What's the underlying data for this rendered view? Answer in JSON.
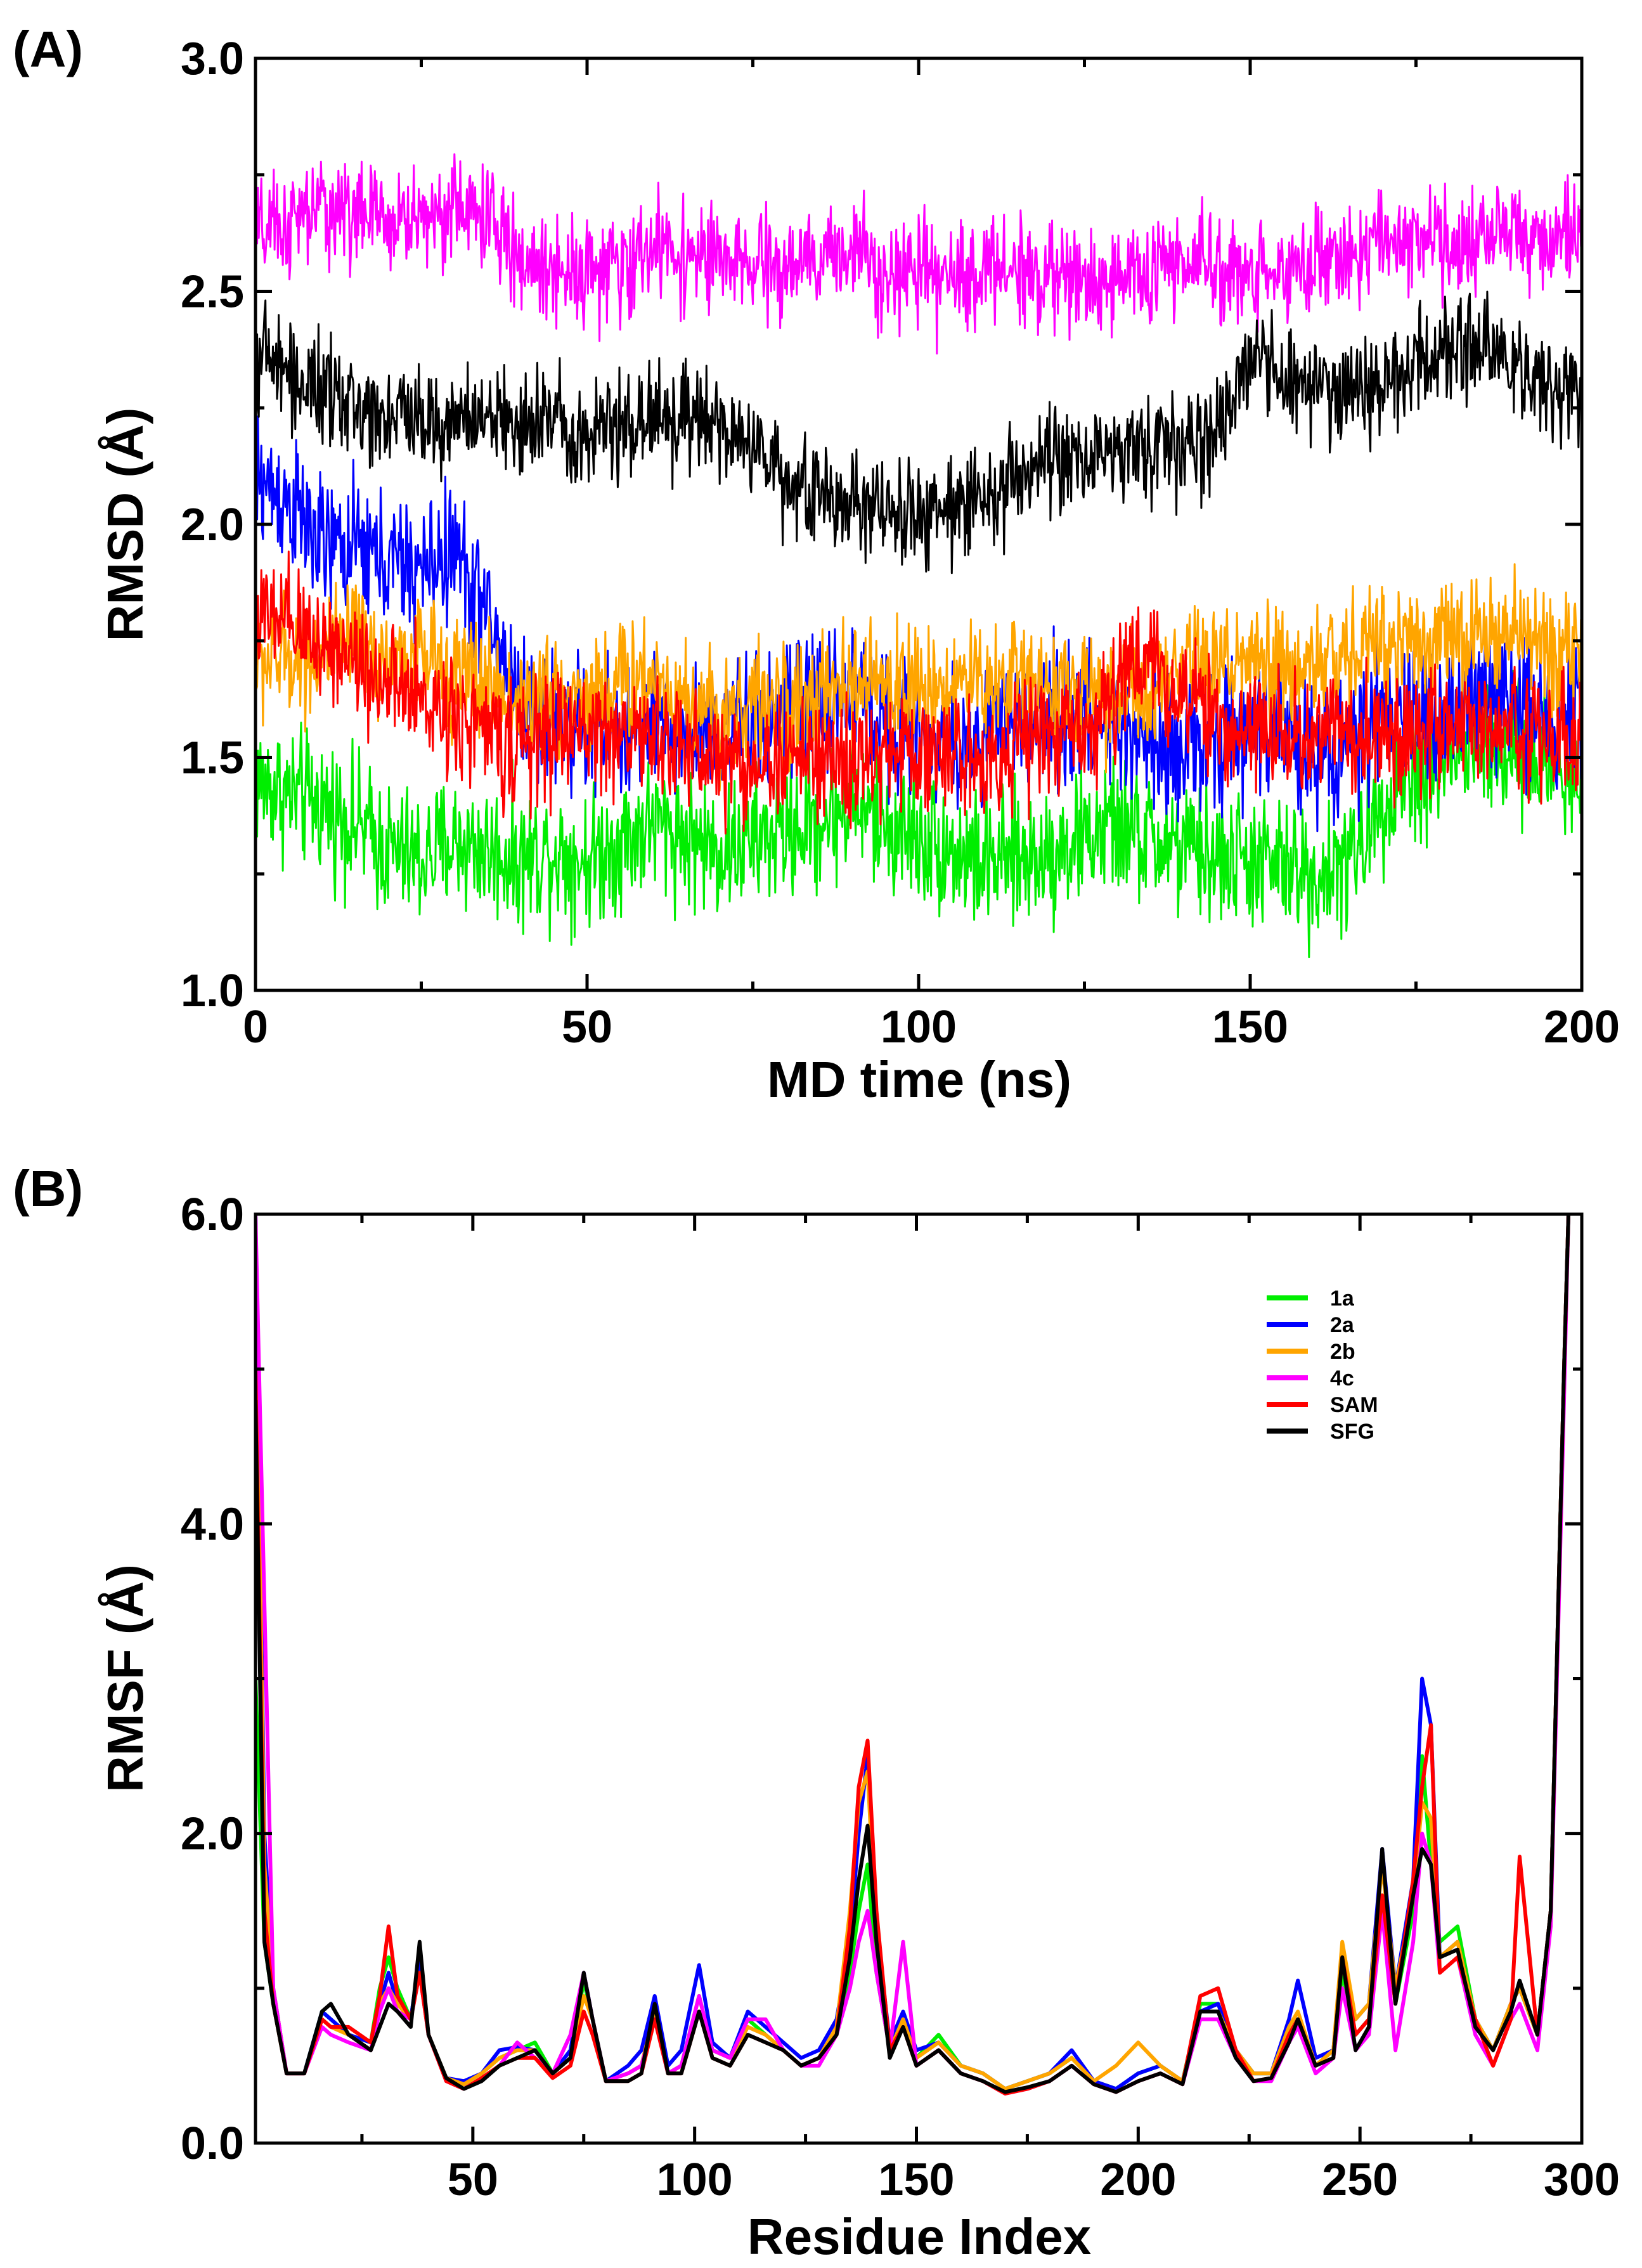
{
  "chart_data": [
    {
      "panel": "(A)",
      "type": "line",
      "title": "",
      "xlabel": "MD time (ns)",
      "ylabel": "RMSD (Å)",
      "xlim": [
        0,
        200
      ],
      "ylim": [
        1.0,
        3.0
      ],
      "xticks": [
        0,
        50,
        100,
        150,
        200
      ],
      "yticks": [
        1.0,
        1.5,
        2.0,
        2.5,
        3.0
      ],
      "xtick_labels": [
        "0",
        "50",
        "100",
        "150",
        "200"
      ],
      "ytick_labels": [
        "1.0",
        "1.5",
        "2.0",
        "2.5",
        "3.0"
      ],
      "grid": false,
      "x": [
        0,
        5,
        10,
        15,
        20,
        25,
        30,
        35,
        40,
        45,
        50,
        55,
        60,
        65,
        70,
        75,
        80,
        85,
        90,
        95,
        100,
        105,
        110,
        115,
        120,
        125,
        130,
        135,
        140,
        145,
        150,
        155,
        160,
        165,
        170,
        175,
        180,
        185,
        190,
        195,
        200
      ],
      "series": [
        {
          "name": "1a",
          "color": "#00ee00",
          "noise": 0.09,
          "values": [
            1.45,
            1.42,
            1.4,
            1.36,
            1.3,
            1.28,
            1.32,
            1.3,
            1.28,
            1.3,
            1.28,
            1.32,
            1.36,
            1.33,
            1.3,
            1.32,
            1.34,
            1.36,
            1.4,
            1.35,
            1.33,
            1.3,
            1.27,
            1.28,
            1.3,
            1.33,
            1.35,
            1.32,
            1.3,
            1.28,
            1.28,
            1.26,
            1.25,
            1.27,
            1.42,
            1.46,
            1.5,
            1.52,
            1.5,
            1.49,
            1.45
          ]
        },
        {
          "name": "2a",
          "color": "#0000ff",
          "noise": 0.09,
          "values": [
            2.1,
            2.05,
            1.95,
            1.95,
            1.92,
            1.9,
            1.95,
            1.8,
            1.62,
            1.58,
            1.56,
            1.55,
            1.55,
            1.56,
            1.56,
            1.57,
            1.59,
            1.62,
            1.65,
            1.58,
            1.55,
            1.52,
            1.55,
            1.58,
            1.6,
            1.58,
            1.56,
            1.55,
            1.52,
            1.53,
            1.55,
            1.56,
            1.52,
            1.52,
            1.58,
            1.6,
            1.6,
            1.62,
            1.62,
            1.6,
            1.6
          ]
        },
        {
          "name": "2b",
          "color": "#ffa500",
          "noise": 0.08,
          "values": [
            1.7,
            1.72,
            1.72,
            1.74,
            1.7,
            1.72,
            1.68,
            1.66,
            1.62,
            1.63,
            1.64,
            1.66,
            1.68,
            1.62,
            1.6,
            1.62,
            1.6,
            1.62,
            1.65,
            1.66,
            1.65,
            1.66,
            1.66,
            1.68,
            1.66,
            1.64,
            1.65,
            1.62,
            1.68,
            1.7,
            1.7,
            1.68,
            1.7,
            1.72,
            1.75,
            1.76,
            1.75,
            1.76,
            1.76,
            1.74,
            1.74
          ]
        },
        {
          "name": "4c",
          "color": "#ff00ff",
          "noise": 0.07,
          "values": [
            2.62,
            2.64,
            2.68,
            2.67,
            2.65,
            2.66,
            2.68,
            2.66,
            2.56,
            2.55,
            2.55,
            2.54,
            2.6,
            2.58,
            2.56,
            2.55,
            2.55,
            2.56,
            2.6,
            2.55,
            2.53,
            2.52,
            2.55,
            2.55,
            2.53,
            2.52,
            2.53,
            2.54,
            2.56,
            2.55,
            2.54,
            2.55,
            2.56,
            2.58,
            2.6,
            2.62,
            2.6,
            2.62,
            2.62,
            2.6,
            2.61
          ]
        },
        {
          "name": "SAM",
          "color": "#ff0000",
          "noise": 0.08,
          "values": [
            1.8,
            1.78,
            1.75,
            1.72,
            1.65,
            1.62,
            1.6,
            1.55,
            1.52,
            1.55,
            1.56,
            1.55,
            1.54,
            1.52,
            1.5,
            1.48,
            1.5,
            1.5,
            1.48,
            1.5,
            1.52,
            1.5,
            1.5,
            1.53,
            1.55,
            1.56,
            1.65,
            1.72,
            1.62,
            1.57,
            1.55,
            1.56,
            1.55,
            1.55,
            1.55,
            1.55,
            1.55,
            1.56,
            1.55,
            1.55,
            1.54
          ]
        },
        {
          "name": "SFG",
          "color": "#000000",
          "noise": 0.07,
          "values": [
            2.38,
            2.32,
            2.28,
            2.25,
            2.24,
            2.23,
            2.22,
            2.22,
            2.22,
            2.23,
            2.2,
            2.21,
            2.24,
            2.22,
            2.2,
            2.17,
            2.1,
            2.05,
            2.05,
            2.02,
            2.02,
            2.04,
            2.06,
            2.1,
            2.12,
            2.15,
            2.16,
            2.17,
            2.16,
            2.2,
            2.36,
            2.32,
            2.3,
            2.28,
            2.3,
            2.35,
            2.38,
            2.4,
            2.32,
            2.3,
            2.28
          ]
        }
      ]
    },
    {
      "panel": "(B)",
      "type": "line",
      "title": "",
      "xlabel": "Residue Index",
      "ylabel": "RMSF (Å)",
      "xlim": [
        1,
        300
      ],
      "ylim": [
        0.0,
        6.0
      ],
      "xticks": [
        50,
        100,
        150,
        200,
        250,
        300
      ],
      "yticks": [
        0.0,
        2.0,
        4.0,
        6.0
      ],
      "xtick_labels": [
        "50",
        "100",
        "150",
        "200",
        "250",
        "300"
      ],
      "ytick_labels": [
        "0.0",
        "2.0",
        "4.0",
        "6.0"
      ],
      "grid": false,
      "legend_position": "top-right",
      "x": [
        1,
        3,
        5,
        8,
        12,
        16,
        18,
        22,
        27,
        29,
        31,
        33,
        36,
        38,
        40,
        44,
        48,
        52,
        56,
        60,
        64,
        68,
        72,
        75,
        77,
        80,
        85,
        88,
        91,
        94,
        97,
        101,
        104,
        108,
        112,
        116,
        120,
        124,
        128,
        132,
        135,
        137,
        139,
        141,
        144,
        147,
        150,
        155,
        160,
        165,
        170,
        175,
        180,
        185,
        190,
        195,
        200,
        205,
        210,
        214,
        218,
        222,
        226,
        230,
        234,
        236,
        240,
        244,
        246,
        249,
        252,
        255,
        258,
        262,
        264,
        266,
        268,
        272,
        276,
        280,
        284,
        286,
        290,
        293,
        296,
        297
      ],
      "series": [
        {
          "name": "1a",
          "color": "#00ee00",
          "values": [
            3.0,
            1.3,
            0.9,
            0.45,
            0.45,
            0.85,
            0.8,
            0.7,
            0.65,
            1.0,
            1.2,
            1.0,
            0.8,
            1.2,
            0.7,
            0.42,
            0.38,
            0.45,
            0.55,
            0.6,
            0.65,
            0.45,
            0.55,
            1.05,
            0.8,
            0.4,
            0.45,
            0.5,
            0.85,
            0.45,
            0.5,
            0.95,
            0.6,
            0.55,
            0.8,
            0.7,
            0.6,
            0.5,
            0.55,
            0.7,
            1.1,
            1.5,
            1.8,
            1.1,
            0.6,
            0.8,
            0.55,
            0.7,
            0.5,
            0.45,
            0.35,
            0.4,
            0.45,
            0.55,
            0.4,
            0.35,
            0.45,
            0.5,
            0.4,
            0.9,
            0.9,
            0.6,
            0.45,
            0.45,
            0.7,
            0.8,
            0.5,
            0.6,
            1.1,
            0.7,
            0.8,
            1.6,
            0.9,
            1.5,
            2.5,
            1.8,
            1.3,
            1.4,
            0.8,
            0.6,
            0.9,
            1.0,
            0.7,
            1.5,
            5.0,
            6.0
          ]
        },
        {
          "name": "2a",
          "color": "#0000ff",
          "values": [
            6.0,
            2.0,
            1.0,
            0.45,
            0.45,
            0.85,
            0.8,
            0.7,
            0.65,
            0.9,
            1.1,
            0.9,
            0.8,
            1.2,
            0.7,
            0.42,
            0.4,
            0.45,
            0.6,
            0.62,
            0.6,
            0.45,
            0.6,
            1.1,
            0.8,
            0.4,
            0.5,
            0.6,
            0.95,
            0.5,
            0.6,
            1.15,
            0.65,
            0.55,
            0.85,
            0.75,
            0.65,
            0.55,
            0.6,
            0.8,
            1.3,
            2.0,
            2.5,
            1.4,
            0.65,
            0.85,
            0.6,
            0.65,
            0.5,
            0.45,
            0.35,
            0.4,
            0.45,
            0.6,
            0.4,
            0.35,
            0.45,
            0.5,
            0.4,
            0.85,
            0.9,
            0.6,
            0.45,
            0.45,
            0.8,
            1.05,
            0.55,
            0.6,
            1.2,
            0.8,
            0.9,
            1.9,
            1.0,
            1.7,
            3.0,
            2.7,
            1.2,
            1.3,
            0.8,
            0.6,
            0.9,
            1.0,
            0.7,
            1.5,
            5.0,
            6.0
          ]
        },
        {
          "name": "2b",
          "color": "#ffa500",
          "values": [
            5.8,
            1.8,
            1.0,
            0.45,
            0.45,
            0.8,
            0.75,
            0.7,
            0.6,
            0.9,
            1.0,
            0.9,
            0.8,
            1.1,
            0.7,
            0.42,
            0.38,
            0.45,
            0.55,
            0.6,
            0.6,
            0.45,
            0.55,
            0.95,
            0.8,
            0.4,
            0.45,
            0.5,
            0.85,
            0.45,
            0.5,
            0.85,
            0.6,
            0.55,
            0.75,
            0.7,
            0.6,
            0.5,
            0.55,
            0.75,
            1.5,
            2.2,
            2.4,
            1.3,
            0.6,
            0.8,
            0.55,
            0.65,
            0.5,
            0.45,
            0.35,
            0.4,
            0.45,
            0.55,
            0.4,
            0.5,
            0.65,
            0.5,
            0.4,
            0.85,
            0.85,
            0.6,
            0.45,
            0.45,
            0.75,
            0.85,
            0.5,
            0.6,
            1.3,
            0.8,
            0.9,
            1.8,
            1.0,
            1.6,
            2.2,
            2.1,
            1.2,
            1.3,
            0.8,
            0.6,
            0.9,
            1.0,
            0.7,
            1.5,
            5.0,
            6.0
          ]
        },
        {
          "name": "4c",
          "color": "#ff00ff",
          "values": [
            6.0,
            3.5,
            1.0,
            0.45,
            0.45,
            0.75,
            0.7,
            0.65,
            0.6,
            0.85,
            1.0,
            0.85,
            0.8,
            1.1,
            0.7,
            0.4,
            0.35,
            0.42,
            0.5,
            0.65,
            0.55,
            0.45,
            0.7,
            1.1,
            0.8,
            0.4,
            0.45,
            0.5,
            0.8,
            0.45,
            0.5,
            0.95,
            0.6,
            0.55,
            0.8,
            0.8,
            0.6,
            0.5,
            0.5,
            0.7,
            1.0,
            1.3,
            1.5,
            1.1,
            0.6,
            1.3,
            0.5,
            0.6,
            0.45,
            0.4,
            0.32,
            0.35,
            0.4,
            0.5,
            0.38,
            0.33,
            0.4,
            0.45,
            0.38,
            0.8,
            0.8,
            0.55,
            0.4,
            0.4,
            0.65,
            0.75,
            0.45,
            0.55,
            1.0,
            0.6,
            0.7,
            1.5,
            0.6,
            1.3,
            2.0,
            1.8,
            1.1,
            1.2,
            0.7,
            0.5,
            0.8,
            0.9,
            0.6,
            1.4,
            4.8,
            6.0
          ]
        },
        {
          "name": "SAM",
          "color": "#ff0000",
          "values": [
            5.0,
            1.5,
            0.9,
            0.45,
            0.45,
            0.8,
            0.75,
            0.75,
            0.65,
            0.95,
            1.4,
            0.95,
            0.8,
            1.1,
            0.7,
            0.4,
            0.35,
            0.42,
            0.5,
            0.55,
            0.55,
            0.42,
            0.5,
            0.85,
            0.7,
            0.4,
            0.4,
            0.45,
            0.8,
            0.45,
            0.45,
            0.85,
            0.55,
            0.5,
            0.7,
            0.65,
            0.6,
            0.5,
            0.55,
            0.7,
            1.4,
            2.3,
            2.6,
            1.5,
            0.6,
            0.75,
            0.5,
            0.6,
            0.45,
            0.4,
            0.32,
            0.35,
            0.4,
            0.5,
            0.38,
            0.33,
            0.4,
            0.45,
            0.38,
            0.95,
            1.0,
            0.6,
            0.4,
            0.42,
            0.7,
            0.8,
            0.5,
            0.55,
            1.2,
            0.7,
            0.8,
            1.6,
            0.9,
            1.7,
            2.3,
            2.7,
            1.1,
            1.2,
            0.8,
            0.5,
            0.8,
            1.85,
            0.7,
            1.5,
            5.0,
            6.0
          ]
        },
        {
          "name": "SFG",
          "color": "#000000",
          "values": [
            4.8,
            1.3,
            0.9,
            0.45,
            0.45,
            0.85,
            0.9,
            0.7,
            0.6,
            0.75,
            0.9,
            0.85,
            0.75,
            1.3,
            0.7,
            0.42,
            0.35,
            0.4,
            0.5,
            0.55,
            0.6,
            0.45,
            0.55,
            1.1,
            0.8,
            0.4,
            0.4,
            0.45,
            0.9,
            0.45,
            0.45,
            0.85,
            0.55,
            0.5,
            0.7,
            0.65,
            0.6,
            0.5,
            0.55,
            0.7,
            1.2,
            1.7,
            2.05,
            1.3,
            0.55,
            0.75,
            0.5,
            0.6,
            0.45,
            0.4,
            0.33,
            0.36,
            0.4,
            0.5,
            0.38,
            0.33,
            0.4,
            0.45,
            0.38,
            0.85,
            0.85,
            0.55,
            0.4,
            0.42,
            0.65,
            0.8,
            0.5,
            0.55,
            1.2,
            0.6,
            0.75,
            1.9,
            0.9,
            1.6,
            1.9,
            1.8,
            1.2,
            1.25,
            0.75,
            0.6,
            0.85,
            1.05,
            0.7,
            1.5,
            5.0,
            6.0
          ]
        }
      ]
    }
  ],
  "legend": {
    "entries": [
      "1a",
      "2a",
      "2b",
      "4c",
      "SAM",
      "SFG"
    ]
  }
}
